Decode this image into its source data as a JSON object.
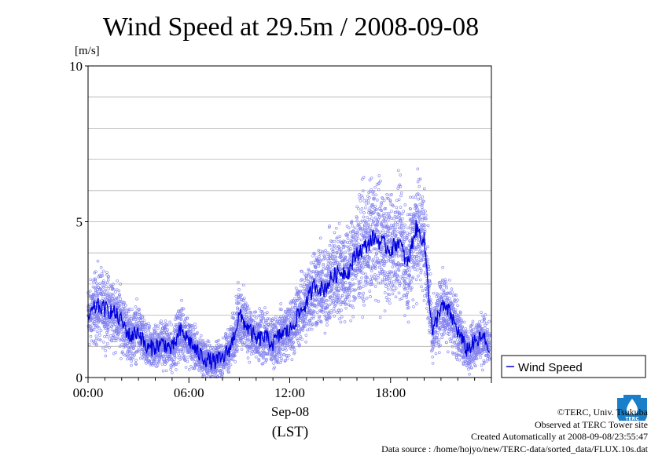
{
  "chart_data": {
    "type": "line",
    "title": "Wind Speed at 29.5m / 2008-09-08",
    "unit_label": "[m/s]",
    "ylim": [
      0,
      10
    ],
    "yticks": [
      {
        "value": 0,
        "label": "0"
      },
      {
        "value": 5,
        "label": "5"
      },
      {
        "value": 10,
        "label": "10"
      }
    ],
    "xlim": [
      0,
      24
    ],
    "xticks": [
      {
        "value": 0,
        "label": "00:00"
      },
      {
        "value": 6,
        "label": "06:00"
      },
      {
        "value": 12,
        "label": "12:00"
      },
      {
        "value": 18,
        "label": "18:00"
      }
    ],
    "date_label": "Sep-08",
    "xlabel": "(LST)",
    "grid": true,
    "legend_position": "right",
    "series": [
      {
        "name": "Wind Speed",
        "color": "#0000dd",
        "scatter_color": "#8080ee",
        "x_hours": [
          0.0,
          0.5,
          1.0,
          1.5,
          2.0,
          2.5,
          3.0,
          3.5,
          4.0,
          4.5,
          5.0,
          5.5,
          6.0,
          6.5,
          7.0,
          7.5,
          8.0,
          8.5,
          9.0,
          9.5,
          10.0,
          10.5,
          11.0,
          11.5,
          12.0,
          12.5,
          13.0,
          13.5,
          14.0,
          14.5,
          15.0,
          15.5,
          16.0,
          16.5,
          17.0,
          17.5,
          18.0,
          18.5,
          19.0,
          19.5,
          20.0,
          20.5,
          21.0,
          21.5,
          22.0,
          22.5,
          23.0,
          23.5,
          23.9
        ],
        "values": [
          1.9,
          2.3,
          2.2,
          2.1,
          1.8,
          1.3,
          1.5,
          0.9,
          1.0,
          1.1,
          0.9,
          1.5,
          1.2,
          0.8,
          0.6,
          0.5,
          0.6,
          1.0,
          2.0,
          1.6,
          1.2,
          1.3,
          1.1,
          1.4,
          1.5,
          2.0,
          2.4,
          3.0,
          2.8,
          3.2,
          3.4,
          3.4,
          4.0,
          4.2,
          4.5,
          4.3,
          4.1,
          4.4,
          3.6,
          4.8,
          4.4,
          1.4,
          2.3,
          2.1,
          1.5,
          0.9,
          1.1,
          1.3,
          0.9
        ]
      }
    ]
  },
  "credits": {
    "copyright": "©TERC, Univ. Tsukuba",
    "observed": "Observed at TERC Tower site",
    "created": "Created Automatically at 2008-09-08/23:55:47",
    "source": "Data source : /home/hojyo/new/TERC-data/sorted_data/FLUX.10s.dat"
  }
}
